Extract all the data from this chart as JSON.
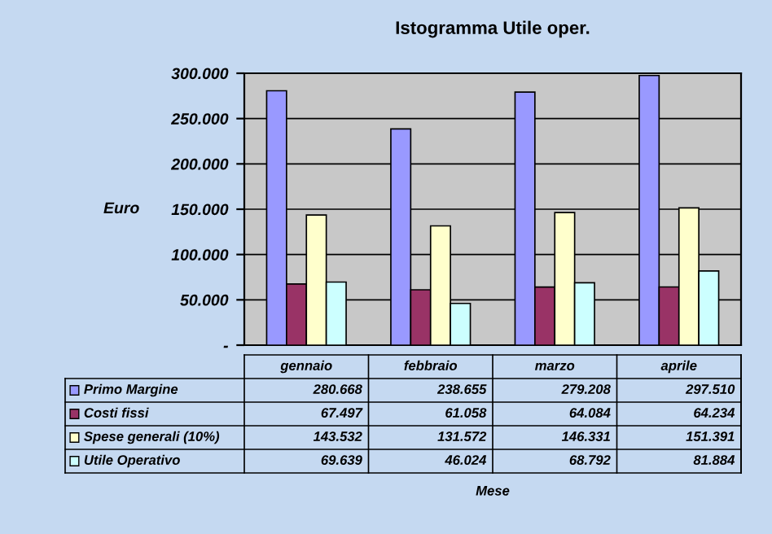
{
  "chart_data": {
    "type": "bar",
    "title": "Istogramma Utile oper.",
    "annotations": [
      "Mese"
    ],
    "ylabel": "Euro",
    "categories": [
      "gennaio",
      "febbraio",
      "marzo",
      "aprile"
    ],
    "series": [
      {
        "name": "Primo Margine",
        "color": "#9999ff",
        "values": [
          280668,
          238655,
          279208,
          297510
        ],
        "value_labels": [
          "280.668",
          "238.655",
          "279.208",
          "297.510"
        ]
      },
      {
        "name": "Costi fissi",
        "color": "#993366",
        "values": [
          67497,
          61058,
          64084,
          64234
        ],
        "value_labels": [
          "67.497",
          "61.058",
          "64.084",
          "64.234"
        ]
      },
      {
        "name": "Spese generali (10%)",
        "color": "#ffffcc",
        "values": [
          143532,
          131572,
          146331,
          151391
        ],
        "value_labels": [
          "143.532",
          "131.572",
          "146.331",
          "151.391"
        ]
      },
      {
        "name": "Utile Operativo",
        "color": "#ccffff",
        "values": [
          69639,
          46024,
          68792,
          81884
        ],
        "value_labels": [
          "69.639",
          "46.024",
          "68.792",
          "81.884"
        ]
      }
    ],
    "ylim": [
      0,
      300000
    ],
    "yticks": [
      {
        "value": 0,
        "label": "-"
      },
      {
        "value": 50000,
        "label": "50.000"
      },
      {
        "value": 100000,
        "label": "100.000"
      },
      {
        "value": 150000,
        "label": "150.000"
      },
      {
        "value": 200000,
        "label": "200.000"
      },
      {
        "value": 250000,
        "label": "250.000"
      },
      {
        "value": 300000,
        "label": "300.000"
      }
    ],
    "grid": "y",
    "legend": "bottom"
  }
}
